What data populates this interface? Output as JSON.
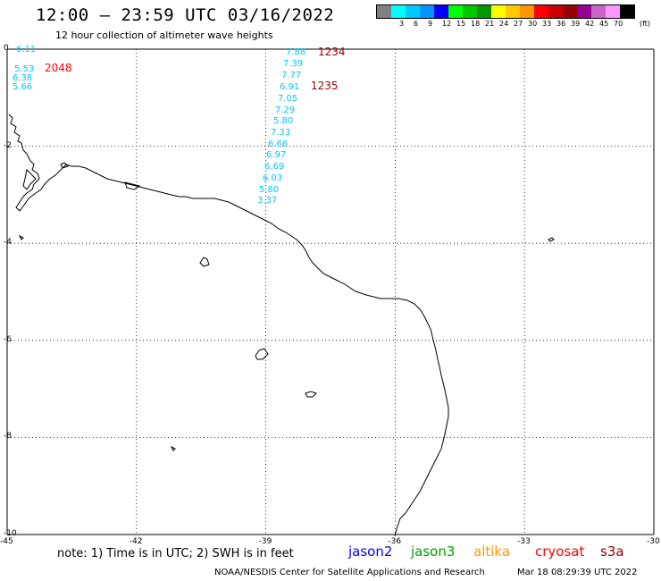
{
  "header": {
    "title": "12:00 — 23:59 UTC 03/16/2022",
    "subtitle": "12 hour collection of altimeter wave heights"
  },
  "legend": {
    "unit_label": "(ft)",
    "bins": [
      {
        "label": "",
        "color": "#808080"
      },
      {
        "label": "3",
        "color": "#00ffff"
      },
      {
        "label": "6",
        "color": "#00c8ff"
      },
      {
        "label": "9",
        "color": "#0096ff"
      },
      {
        "label": "12",
        "color": "#0000ff"
      },
      {
        "label": "15",
        "color": "#00ff00"
      },
      {
        "label": "18",
        "color": "#00c800"
      },
      {
        "label": "21",
        "color": "#009600"
      },
      {
        "label": "24",
        "color": "#ffff00"
      },
      {
        "label": "27",
        "color": "#ffc800"
      },
      {
        "label": "30",
        "color": "#ff9600"
      },
      {
        "label": "33",
        "color": "#ff0000"
      },
      {
        "label": "36",
        "color": "#c80000"
      },
      {
        "label": "39",
        "color": "#960000"
      },
      {
        "label": "42",
        "color": "#960096"
      },
      {
        "label": "45",
        "color": "#c864c8"
      },
      {
        "label": "70",
        "color": "#ff96ff"
      },
      {
        "label": "",
        "color": "#000000"
      }
    ]
  },
  "map": {
    "lon_range": [
      -45,
      -30
    ],
    "lat_range": [
      -10,
      0
    ],
    "lon_ticks": [
      "-45",
      "-42",
      "-39",
      "-36",
      "-33",
      "-30"
    ],
    "lat_ticks": [
      "0",
      "-2",
      "-4",
      "-6",
      "-8",
      "-10"
    ],
    "grid_color": "#000000",
    "coast_color": "#000000"
  },
  "tracks": {
    "left_values": [
      "6.11",
      "5.53",
      "6.38",
      "5.66"
    ],
    "right_values": [
      "7.88",
      "7.39",
      "7.77",
      "6.91",
      "7.05",
      "7.29",
      "5.80",
      "7.33",
      "6.66",
      "6.97",
      "6.69",
      "6.03",
      "5.80",
      "3.37"
    ],
    "value_color": "#00c8ff",
    "pass_labels": [
      {
        "text": "2048",
        "color": "#ff0000"
      },
      {
        "text": "1234",
        "color": "#960000"
      },
      {
        "text": "1235",
        "color": "#960000"
      }
    ]
  },
  "footer": {
    "note": "note: 1) Time is in UTC; 2) SWH is in feet",
    "satellites": [
      {
        "name": "jason2",
        "color": "#0000ff"
      },
      {
        "name": "jason3",
        "color": "#00a000"
      },
      {
        "name": "altika",
        "color": "#ff9600"
      },
      {
        "name": "cryosat",
        "color": "#ff0000"
      },
      {
        "name": "s3a",
        "color": "#960000"
      }
    ],
    "credit": "NOAA/NESDIS Center for Satellite Applications and Research",
    "timestamp": "Mar 18 08:29:39 UTC 2022"
  }
}
